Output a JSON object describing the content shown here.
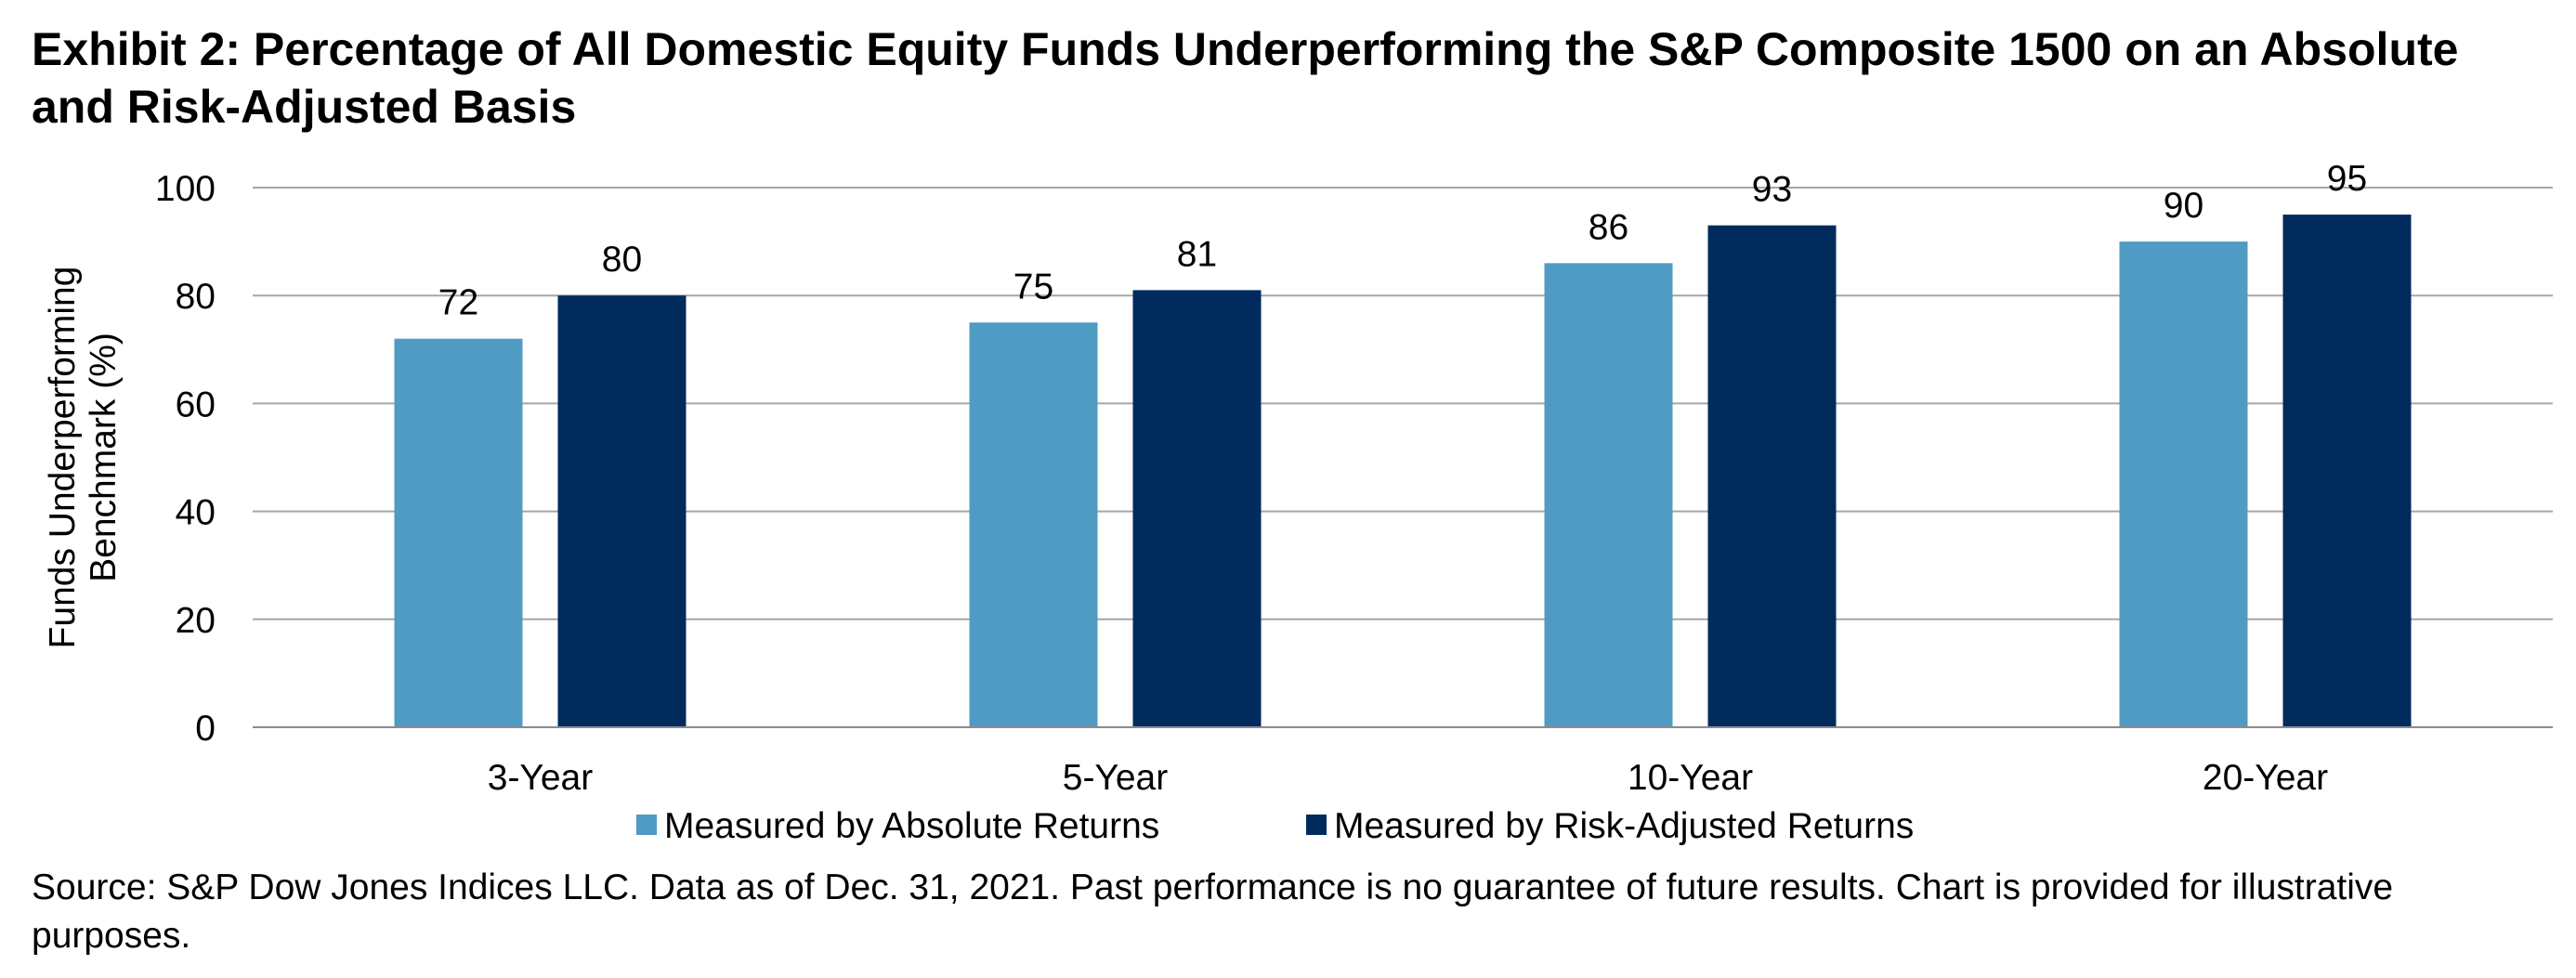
{
  "title": "Exhibit 2: Percentage of All Domestic Equity Funds Underperforming the S&P Composite 1500 on an Absolute and Risk-Adjusted Basis",
  "source": "Source: S&P Dow Jones Indices LLC.  Data as of Dec. 31, 2021.  Past performance is no guarantee of future results.  Chart is provided for illustrative purposes.",
  "colors": {
    "absolute": "#4f9bc4",
    "risk_adjusted": "#002b5c",
    "gridline": "#a6a6a6",
    "axis": "#8c8c8c"
  },
  "chart_data": {
    "type": "bar",
    "categories": [
      "3-Year",
      "5-Year",
      "10-Year",
      "20-Year"
    ],
    "series": [
      {
        "name": "Measured by Absolute Returns",
        "values": [
          72,
          75,
          86,
          90
        ]
      },
      {
        "name": "Measured by Risk-Adjusted Returns",
        "values": [
          80,
          81,
          93,
          95
        ]
      }
    ],
    "data_labels": [
      [
        "72",
        "75",
        "86",
        "90"
      ],
      [
        "80",
        "81",
        "93",
        "95"
      ]
    ],
    "ylabel": "Funds Underperforming Benchmark (%)",
    "ylabel_lines": [
      "Funds Underperforming",
      "Benchmark (%)"
    ],
    "ylim": [
      0,
      100
    ],
    "yticks": [
      0,
      20,
      40,
      60,
      80,
      100
    ],
    "ytick_labels": [
      "0",
      "20",
      "40",
      "60",
      "80",
      "100"
    ],
    "grid": true,
    "legend_position": "bottom"
  }
}
